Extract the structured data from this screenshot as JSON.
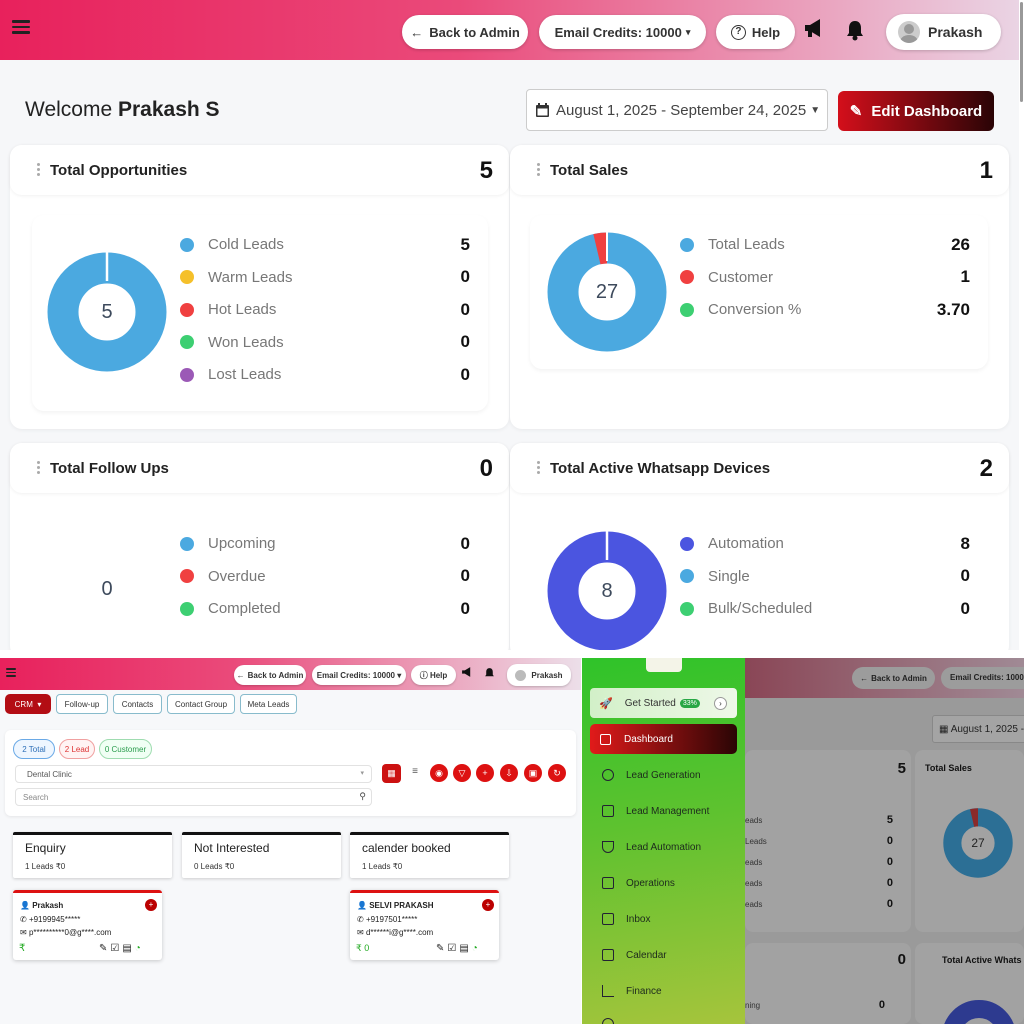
{
  "header": {
    "back": "Back to Admin",
    "credits": "Email Credits: 10000",
    "help": "Help",
    "user": "Prakash"
  },
  "welcome": {
    "prefix": "Welcome",
    "name": "Prakash S"
  },
  "date_range": "August 1, 2025 - September 24, 2025",
  "edit_dashboard": "Edit Dashboard",
  "opportunities": {
    "title": "Total Opportunities",
    "total": "5",
    "center": "5",
    "items": [
      {
        "label": "Cold Leads",
        "value": "5",
        "color": "#4ba9e0"
      },
      {
        "label": "Warm Leads",
        "value": "0",
        "color": "#f5c02a"
      },
      {
        "label": "Hot Leads",
        "value": "0",
        "color": "#f04040"
      },
      {
        "label": "Won Leads",
        "value": "0",
        "color": "#3dcf72"
      },
      {
        "label": "Lost Leads",
        "value": "0",
        "color": "#9b59b6"
      }
    ]
  },
  "sales": {
    "title": "Total Sales",
    "total": "1",
    "center": "27",
    "items": [
      {
        "label": "Total Leads",
        "value": "26",
        "color": "#4ba9e0"
      },
      {
        "label": "Customer",
        "value": "1",
        "color": "#f04040"
      },
      {
        "label": "Conversion %",
        "value": "3.70",
        "color": "#3dcf72"
      }
    ]
  },
  "followups": {
    "title": "Total Follow Ups",
    "total": "0",
    "center": "0",
    "items": [
      {
        "label": "Upcoming",
        "value": "0",
        "color": "#4ba9e0"
      },
      {
        "label": "Overdue",
        "value": "0",
        "color": "#f04040"
      },
      {
        "label": "Completed",
        "value": "0",
        "color": "#3dcf72"
      }
    ]
  },
  "whatsapp": {
    "title": "Total Active Whatsapp Devices",
    "total": "2",
    "center": "8",
    "items": [
      {
        "label": "Automation",
        "value": "8",
        "color": "#4b55e0"
      },
      {
        "label": "Single",
        "value": "0",
        "color": "#4ba9e0"
      },
      {
        "label": "Bulk/Scheduled",
        "value": "0",
        "color": "#3dcf72"
      }
    ]
  },
  "crm": {
    "tabs": [
      "CRM",
      "Follow-up",
      "Contacts",
      "Contact Group",
      "Meta Leads"
    ],
    "pills": [
      "2 Total",
      "2 Lead",
      "0 Customer"
    ],
    "filter": "Dental Clinic",
    "search_placeholder": "Search",
    "stages": [
      {
        "name": "Enquiry",
        "sub": "1 Leads ₹0"
      },
      {
        "name": "Not Interested",
        "sub": "0 Leads ₹0"
      },
      {
        "name": "calender booked",
        "sub": "1 Leads ₹0"
      }
    ],
    "leads": [
      {
        "name": "Prakash",
        "phone": "+9199945*****",
        "email": "p**********0@g****.com",
        "amount": "₹"
      },
      {
        "name": "SELVI PRAKASH",
        "phone": "+9197501*****",
        "email": "d******i@g****.com",
        "amount": "₹ 0"
      }
    ]
  },
  "sidebar": {
    "get_started": "Get Started",
    "progress": "33%",
    "items": [
      "Dashboard",
      "Lead Generation",
      "Lead Management",
      "Lead Automation",
      "Operations",
      "Inbox",
      "Calendar",
      "Finance"
    ]
  },
  "dim": {
    "back": "Back to Admin",
    "credits": "Email Credits: 10000",
    "date": "August 1, 2025 -",
    "total_opp": "5",
    "total_sales_label": "Total Sales",
    "center": "27",
    "partial_labels": [
      "eads",
      "Leads",
      "eads",
      "eads",
      "eads"
    ],
    "values": [
      "5",
      "0",
      "0",
      "0",
      "0"
    ],
    "fu_total": "0",
    "wa_label": "Total Active Whats",
    "last_label": "ning",
    "last_val": "0"
  }
}
